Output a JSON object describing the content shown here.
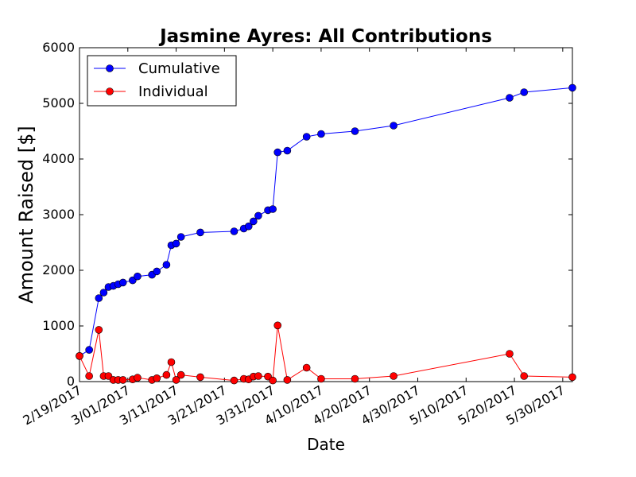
{
  "chart_data": {
    "type": "line",
    "title": "Jasmine Ayres: All Contributions",
    "xlabel": "Date",
    "ylabel": "Amount Raised [$]",
    "xlim": [
      "2017-02-19",
      "2017-06-01"
    ],
    "ylim": [
      0,
      6000
    ],
    "y_ticks": [
      0,
      1000,
      2000,
      3000,
      4000,
      5000,
      6000
    ],
    "x_ticks": [
      {
        "date": "2017-02-19",
        "label": "2/19/2017"
      },
      {
        "date": "2017-03-01",
        "label": "3/01/2017"
      },
      {
        "date": "2017-03-11",
        "label": "3/11/2017"
      },
      {
        "date": "2017-03-21",
        "label": "3/21/2017"
      },
      {
        "date": "2017-03-31",
        "label": "3/31/2017"
      },
      {
        "date": "2017-04-10",
        "label": "4/10/2017"
      },
      {
        "date": "2017-04-20",
        "label": "4/20/2017"
      },
      {
        "date": "2017-04-30",
        "label": "4/30/2017"
      },
      {
        "date": "2017-05-10",
        "label": "5/10/2017"
      },
      {
        "date": "2017-05-20",
        "label": "5/20/2017"
      },
      {
        "date": "2017-05-30",
        "label": "5/30/2017"
      }
    ],
    "grid": false,
    "legend_position": "top-left",
    "series": [
      {
        "name": "Cumulative",
        "color": "#0000ff",
        "points": [
          {
            "x": "2017-02-19",
            "y": 460
          },
          {
            "x": "2017-02-21",
            "y": 570
          },
          {
            "x": "2017-02-23",
            "y": 1500
          },
          {
            "x": "2017-02-24",
            "y": 1600
          },
          {
            "x": "2017-02-25",
            "y": 1700
          },
          {
            "x": "2017-02-26",
            "y": 1720
          },
          {
            "x": "2017-02-27",
            "y": 1750
          },
          {
            "x": "2017-02-28",
            "y": 1780
          },
          {
            "x": "2017-03-02",
            "y": 1820
          },
          {
            "x": "2017-03-03",
            "y": 1890
          },
          {
            "x": "2017-03-06",
            "y": 1920
          },
          {
            "x": "2017-03-07",
            "y": 1980
          },
          {
            "x": "2017-03-09",
            "y": 2100
          },
          {
            "x": "2017-03-10",
            "y": 2450
          },
          {
            "x": "2017-03-11",
            "y": 2480
          },
          {
            "x": "2017-03-12",
            "y": 2600
          },
          {
            "x": "2017-03-16",
            "y": 2680
          },
          {
            "x": "2017-03-23",
            "y": 2700
          },
          {
            "x": "2017-03-25",
            "y": 2750
          },
          {
            "x": "2017-03-26",
            "y": 2790
          },
          {
            "x": "2017-03-27",
            "y": 2880
          },
          {
            "x": "2017-03-28",
            "y": 2980
          },
          {
            "x": "2017-03-30",
            "y": 3080
          },
          {
            "x": "2017-03-31",
            "y": 3100
          },
          {
            "x": "2017-04-01",
            "y": 4120
          },
          {
            "x": "2017-04-03",
            "y": 4150
          },
          {
            "x": "2017-04-07",
            "y": 4400
          },
          {
            "x": "2017-04-10",
            "y": 4450
          },
          {
            "x": "2017-04-17",
            "y": 4500
          },
          {
            "x": "2017-04-25",
            "y": 4600
          },
          {
            "x": "2017-05-19",
            "y": 5100
          },
          {
            "x": "2017-05-22",
            "y": 5200
          },
          {
            "x": "2017-06-01",
            "y": 5280
          }
        ]
      },
      {
        "name": "Individual",
        "color": "#ff0000",
        "points": [
          {
            "x": "2017-02-19",
            "y": 460
          },
          {
            "x": "2017-02-21",
            "y": 100
          },
          {
            "x": "2017-02-23",
            "y": 930
          },
          {
            "x": "2017-02-24",
            "y": 100
          },
          {
            "x": "2017-02-25",
            "y": 100
          },
          {
            "x": "2017-02-26",
            "y": 30
          },
          {
            "x": "2017-02-27",
            "y": 30
          },
          {
            "x": "2017-02-28",
            "y": 30
          },
          {
            "x": "2017-03-02",
            "y": 40
          },
          {
            "x": "2017-03-03",
            "y": 70
          },
          {
            "x": "2017-03-06",
            "y": 30
          },
          {
            "x": "2017-03-07",
            "y": 60
          },
          {
            "x": "2017-03-09",
            "y": 120
          },
          {
            "x": "2017-03-10",
            "y": 350
          },
          {
            "x": "2017-03-11",
            "y": 30
          },
          {
            "x": "2017-03-12",
            "y": 120
          },
          {
            "x": "2017-03-16",
            "y": 80
          },
          {
            "x": "2017-03-23",
            "y": 20
          },
          {
            "x": "2017-03-25",
            "y": 50
          },
          {
            "x": "2017-03-26",
            "y": 40
          },
          {
            "x": "2017-03-27",
            "y": 90
          },
          {
            "x": "2017-03-28",
            "y": 100
          },
          {
            "x": "2017-03-30",
            "y": 90
          },
          {
            "x": "2017-03-31",
            "y": 20
          },
          {
            "x": "2017-04-01",
            "y": 1010
          },
          {
            "x": "2017-04-03",
            "y": 30
          },
          {
            "x": "2017-04-07",
            "y": 250
          },
          {
            "x": "2017-04-10",
            "y": 50
          },
          {
            "x": "2017-04-17",
            "y": 50
          },
          {
            "x": "2017-04-25",
            "y": 100
          },
          {
            "x": "2017-05-19",
            "y": 500
          },
          {
            "x": "2017-05-22",
            "y": 100
          },
          {
            "x": "2017-06-01",
            "y": 80
          }
        ]
      }
    ]
  }
}
